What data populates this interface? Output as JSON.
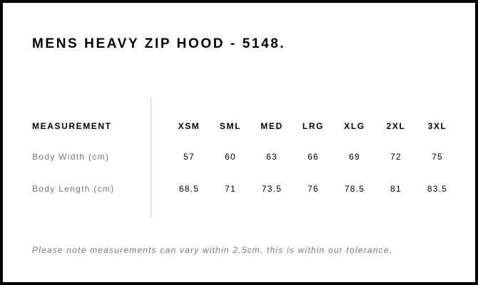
{
  "title": "MENS HEAVY ZIP HOOD - 5148.",
  "table": {
    "header_label": "MEASUREMENT",
    "sizes": [
      "XSM",
      "SML",
      "MED",
      "LRG",
      "XLG",
      "2XL",
      "3XL"
    ],
    "rows": [
      {
        "label": "Body Width (cm)",
        "values": [
          "57",
          "60",
          "63",
          "66",
          "69",
          "72",
          "75"
        ]
      },
      {
        "label": "Body Length (cm)",
        "values": [
          "68.5",
          "71",
          "73.5",
          "76",
          "78.5",
          "81",
          "83.5"
        ]
      }
    ]
  },
  "note": "Please note measurements can vary within 2.5cm, this is within our tolerance."
}
